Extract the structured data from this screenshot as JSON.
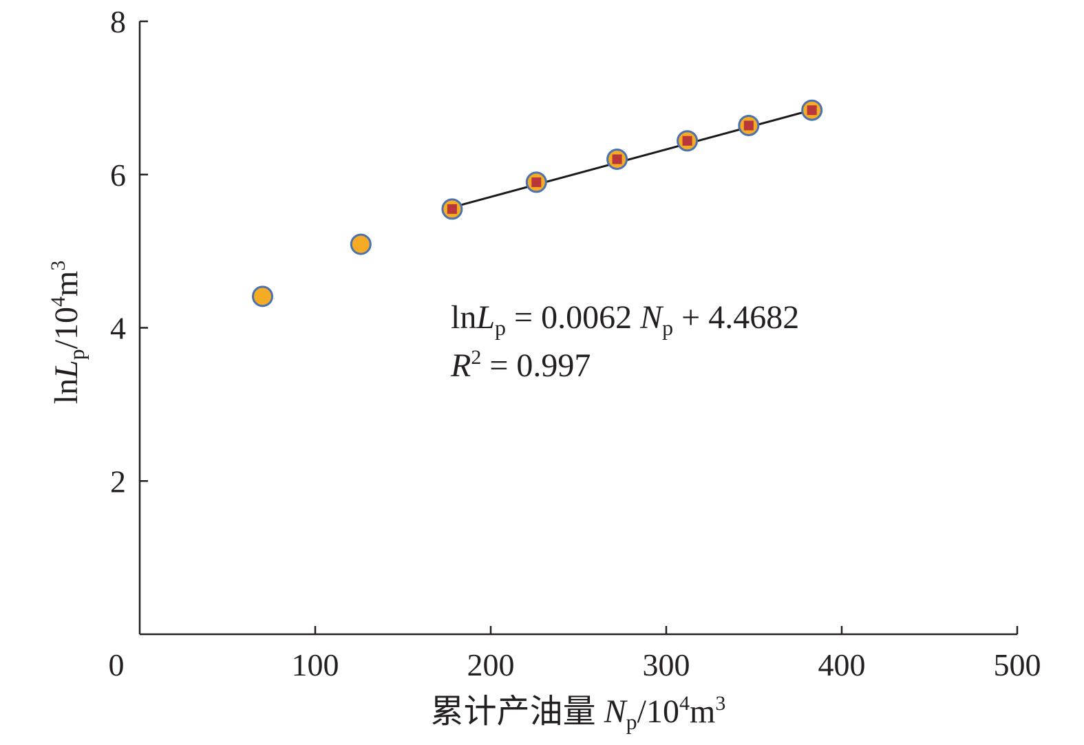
{
  "chart_data": {
    "type": "scatter",
    "title": "",
    "xlabel": {
      "prefix": "累计产油量 ",
      "var": "N",
      "var_sub": "p",
      "unit_pre": "/10",
      "unit_sup1": "4",
      "unit_mid": "m",
      "unit_sup2": "3"
    },
    "ylabel": {
      "prefix": "ln",
      "var": "L",
      "var_sub": "p",
      "unit_pre": "/10",
      "unit_sup1": "4",
      "unit_mid": "m",
      "unit_sup2": "3"
    },
    "xlim": [
      0,
      500
    ],
    "ylim": [
      0,
      8
    ],
    "xticks": [
      0,
      100,
      200,
      300,
      400,
      500
    ],
    "yticks": [
      2,
      4,
      6,
      8
    ],
    "xtick_labels": [
      "0",
      "100",
      "200",
      "300",
      "400",
      "500"
    ],
    "ytick_labels": [
      "2",
      "4",
      "6",
      "8"
    ],
    "grid": false,
    "series": [
      {
        "marker": "circle",
        "fill": "#f5ab23",
        "stroke": "#4a72b0",
        "x": [
          70,
          126,
          178,
          226,
          272,
          312,
          347,
          383
        ],
        "y": [
          4.41,
          5.09,
          5.55,
          5.9,
          6.2,
          6.44,
          6.64,
          6.84
        ]
      },
      {
        "marker": "square",
        "fill": "#b7373a",
        "x": [
          178,
          226,
          272,
          312,
          347,
          383
        ],
        "y": [
          5.55,
          5.9,
          6.2,
          6.44,
          6.64,
          6.84
        ]
      }
    ],
    "fit_line": {
      "x_range": [
        178,
        383
      ],
      "slope": 0.0062,
      "intercept": 4.4682,
      "color": "#1a1a1a"
    },
    "annotation": {
      "line1_prefix": "ln",
      "line1_var": "L",
      "line1_sub": "p",
      "line1_mid": " = 0.0062 ",
      "line1_var2": "N",
      "line1_sub2": "p",
      "line1_suffix": " + 4.4682",
      "line2_var": "R",
      "line2_sup": "2",
      "line2_suffix": " = 0.997"
    }
  }
}
